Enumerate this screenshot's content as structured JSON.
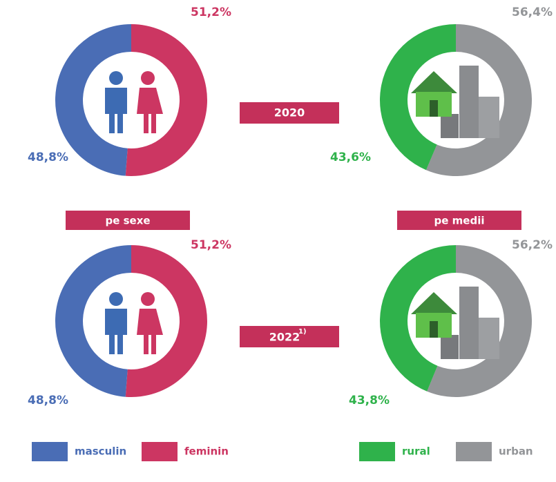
{
  "chart_data": [
    {
      "type": "pie",
      "categories": [
        "masculin",
        "feminin"
      ],
      "values": [
        48.8,
        51.2
      ],
      "value_labels": [
        "48,8%",
        "51,2%"
      ],
      "colors": [
        "#4a6db5",
        "#cc3662"
      ]
    },
    {
      "type": "pie",
      "categories": [
        "rural",
        "urban"
      ],
      "values": [
        43.6,
        56.4
      ],
      "value_labels": [
        "43,6%",
        "56,4%"
      ],
      "colors": [
        "#2fb24b",
        "#939598"
      ]
    },
    {
      "type": "pie",
      "categories": [
        "masculin",
        "feminin"
      ],
      "values": [
        48.8,
        51.2
      ],
      "value_labels": [
        "48,8%",
        "51,2%"
      ],
      "colors": [
        "#4a6db5",
        "#cc3662"
      ]
    },
    {
      "type": "pie",
      "categories": [
        "rural",
        "urban"
      ],
      "values": [
        43.8,
        56.2
      ],
      "value_labels": [
        "43,8%",
        "56,2%"
      ],
      "colors": [
        "#2fb24b",
        "#939598"
      ]
    }
  ],
  "years": [
    {
      "text": "2020"
    },
    {
      "text": "2022",
      "note": "1)"
    }
  ],
  "groups": [
    "pe sexe",
    "pe medii"
  ]
}
